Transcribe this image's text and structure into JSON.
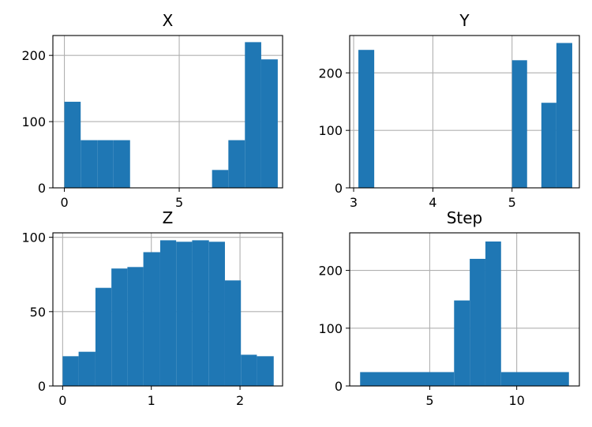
{
  "chart_data": [
    {
      "type": "bar",
      "title": "X",
      "xlim": [
        -0.5,
        9.5
      ],
      "ylim": [
        0,
        230
      ],
      "xticks": [
        0,
        5
      ],
      "xticklabels": [
        "0",
        "5"
      ],
      "yticks": [
        0,
        100,
        200
      ],
      "yticklabels": [
        "0",
        "100",
        "200"
      ],
      "grid": true,
      "bins": [
        {
          "x0": 0.0,
          "x1": 0.71,
          "count": 130
        },
        {
          "x0": 0.71,
          "x1": 1.43,
          "count": 72
        },
        {
          "x0": 1.43,
          "x1": 2.14,
          "count": 72
        },
        {
          "x0": 2.14,
          "x1": 2.86,
          "count": 72
        },
        {
          "x0": 2.86,
          "x1": 3.57,
          "count": 0
        },
        {
          "x0": 3.57,
          "x1": 4.29,
          "count": 0
        },
        {
          "x0": 4.29,
          "x1": 5.0,
          "count": 0
        },
        {
          "x0": 5.0,
          "x1": 5.71,
          "count": 0
        },
        {
          "x0": 5.71,
          "x1": 6.43,
          "count": 0
        },
        {
          "x0": 6.43,
          "x1": 7.14,
          "count": 27
        },
        {
          "x0": 7.14,
          "x1": 7.86,
          "count": 72
        },
        {
          "x0": 7.86,
          "x1": 8.57,
          "count": 220
        },
        {
          "x0": 8.57,
          "x1": 9.29,
          "count": 194
        }
      ]
    },
    {
      "type": "bar",
      "title": "Y",
      "xlim": [
        2.95,
        5.85
      ],
      "ylim": [
        0,
        265
      ],
      "xticks": [
        3,
        4,
        5
      ],
      "xticklabels": [
        "3",
        "4",
        "5"
      ],
      "yticks": [
        0,
        100,
        200
      ],
      "yticklabels": [
        "0",
        "100",
        "200"
      ],
      "grid": true,
      "bins": [
        {
          "x0": 3.06,
          "x1": 3.26,
          "count": 240
        },
        {
          "x0": 5.0,
          "x1": 5.19,
          "count": 222
        },
        {
          "x0": 5.37,
          "x1": 5.56,
          "count": 148
        },
        {
          "x0": 5.56,
          "x1": 5.76,
          "count": 252
        }
      ]
    },
    {
      "type": "bar",
      "title": "Z",
      "xlim": [
        -0.11,
        2.48
      ],
      "ylim": [
        0,
        103
      ],
      "xticks": [
        0,
        1,
        2
      ],
      "xticklabels": [
        "0",
        "1",
        "2"
      ],
      "yticks": [
        0,
        50,
        100
      ],
      "yticklabels": [
        "0",
        "50",
        "100"
      ],
      "grid": true,
      "bins": [
        {
          "x0": 0.0,
          "x1": 0.18,
          "count": 20
        },
        {
          "x0": 0.18,
          "x1": 0.37,
          "count": 23
        },
        {
          "x0": 0.37,
          "x1": 0.55,
          "count": 66
        },
        {
          "x0": 0.55,
          "x1": 0.73,
          "count": 79
        },
        {
          "x0": 0.73,
          "x1": 0.91,
          "count": 80
        },
        {
          "x0": 0.91,
          "x1": 1.1,
          "count": 90
        },
        {
          "x0": 1.1,
          "x1": 1.28,
          "count": 98
        },
        {
          "x0": 1.28,
          "x1": 1.46,
          "count": 97
        },
        {
          "x0": 1.46,
          "x1": 1.65,
          "count": 98
        },
        {
          "x0": 1.65,
          "x1": 1.83,
          "count": 97
        },
        {
          "x0": 1.83,
          "x1": 2.01,
          "count": 71
        },
        {
          "x0": 2.01,
          "x1": 2.19,
          "count": 21
        },
        {
          "x0": 2.19,
          "x1": 2.38,
          "count": 20
        }
      ]
    },
    {
      "type": "bar",
      "title": "Step",
      "xlim": [
        0.4,
        13.6
      ],
      "ylim": [
        0,
        265
      ],
      "xticks": [
        5,
        10
      ],
      "xticklabels": [
        "5",
        "10"
      ],
      "yticks": [
        0,
        100,
        200
      ],
      "yticklabels": [
        "0",
        "100",
        "200"
      ],
      "grid": true,
      "bins": [
        {
          "x0": 1.0,
          "x1": 6.4,
          "count": 24
        },
        {
          "x0": 6.4,
          "x1": 7.3,
          "count": 148
        },
        {
          "x0": 7.3,
          "x1": 8.2,
          "count": 220
        },
        {
          "x0": 8.2,
          "x1": 9.1,
          "count": 250
        },
        {
          "x0": 9.1,
          "x1": 13.0,
          "count": 24
        }
      ]
    }
  ],
  "colors": {
    "bar": "#1f77b4",
    "grid": "#b0b0b0",
    "axis": "#000000",
    "background": "#ffffff"
  }
}
